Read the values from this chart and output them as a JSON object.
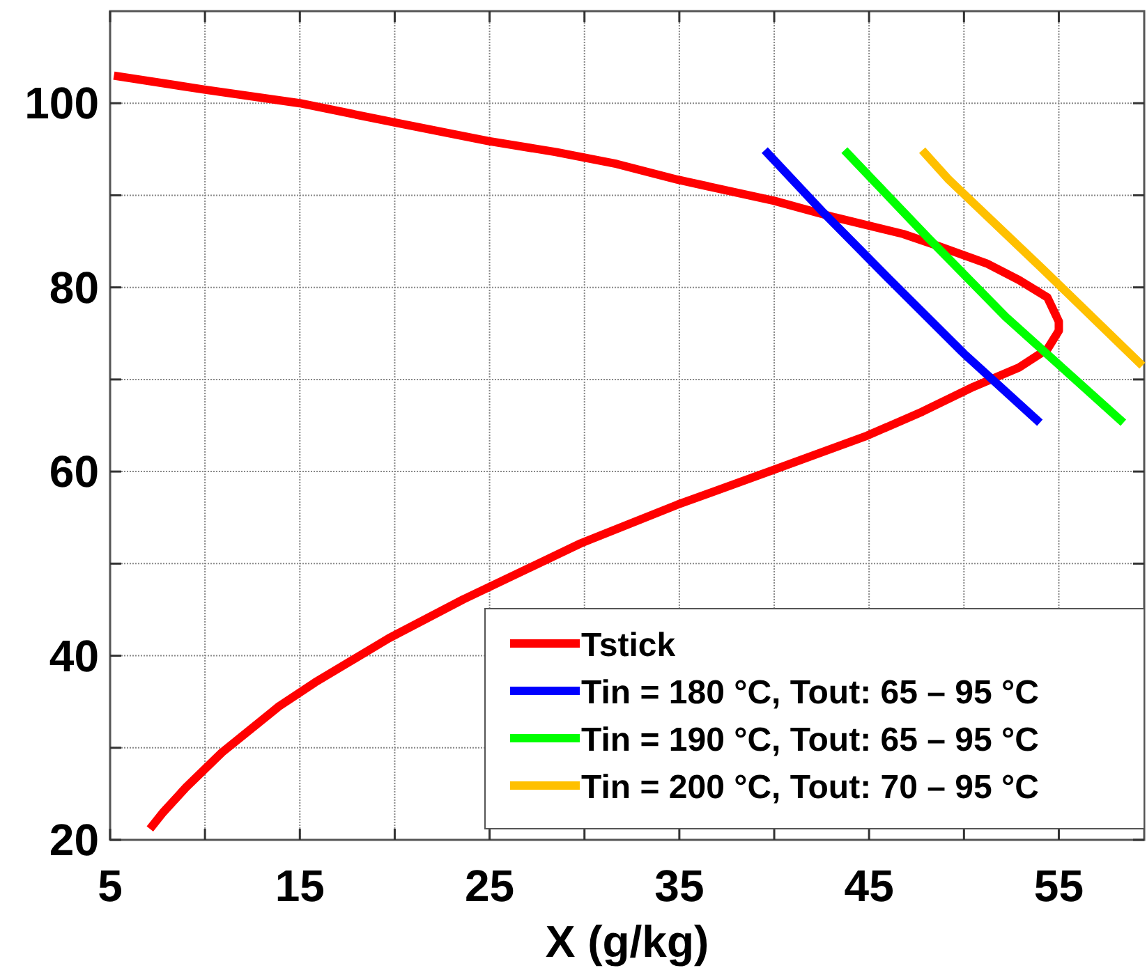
{
  "chart_data": {
    "type": "line",
    "xlabel": "X (g/kg)",
    "xlim": [
      5,
      59.5
    ],
    "ylim": [
      20,
      110
    ],
    "xticks": [
      5,
      {
        "value": 10,
        "label": null
      },
      15,
      {
        "value": 20,
        "label": null
      },
      25,
      {
        "value": 30,
        "label": null
      },
      35,
      {
        "value": 40,
        "label": null
      },
      45,
      {
        "value": 50,
        "label": null
      },
      55
    ],
    "yticks": [
      20,
      {
        "value": 30,
        "label": null
      },
      40,
      {
        "value": 50,
        "label": null
      },
      60,
      {
        "value": 70,
        "label": null
      },
      80,
      {
        "value": 90,
        "label": null
      },
      100
    ],
    "grid": true,
    "legend": "bottom right",
    "line_style": "solid",
    "marker": "none",
    "series": [
      {
        "name": "Tstick",
        "color": "#ff0000",
        "x": [
          7.1,
          7.8,
          9.0,
          10.9,
          13.9,
          15.8,
          19.7,
          23.6,
          29.8,
          34.9,
          40.0,
          44.9,
          47.8,
          50.5,
          52.9,
          54.4,
          55.0,
          55.0,
          54.4,
          52.9,
          51.2,
          48.5,
          46.8,
          43.2,
          40.0,
          34.9,
          31.7,
          28.5,
          24.9,
          20.0,
          15.0,
          9.9,
          5.2
        ],
        "values": [
          21.2,
          23.0,
          25.7,
          29.5,
          34.5,
          37.1,
          41.9,
          46.1,
          52.2,
          56.4,
          60.2,
          63.9,
          66.5,
          69.2,
          71.3,
          73.3,
          75.3,
          76.3,
          78.9,
          80.8,
          82.6,
          84.6,
          85.8,
          87.6,
          89.4,
          91.7,
          93.4,
          94.7,
          95.9,
          97.9,
          100.0,
          101.5,
          103.0
        ]
      },
      {
        "name": "Tin = 180 °C, Tout: 65 – 95 °C",
        "color": "#0000ff",
        "x": [
          39.5,
          42.6,
          46.1,
          50.0,
          54.0
        ],
        "values": [
          94.9,
          88.1,
          80.8,
          72.8,
          65.3
        ]
      },
      {
        "name": "Tin = 190 °C, Tout: 65 – 95 °C",
        "color": "#00ff00",
        "x": [
          43.7,
          48.1,
          52.2,
          58.4
        ],
        "values": [
          94.9,
          85.4,
          76.8,
          65.3
        ]
      },
      {
        "name": "Tin = 200 °C, Tout: 70 – 95 °C",
        "color": "#ffc000",
        "x": [
          47.8,
          49.2,
          54.2,
          59.4
        ],
        "values": [
          94.9,
          91.7,
          81.9,
          71.5
        ]
      }
    ]
  }
}
